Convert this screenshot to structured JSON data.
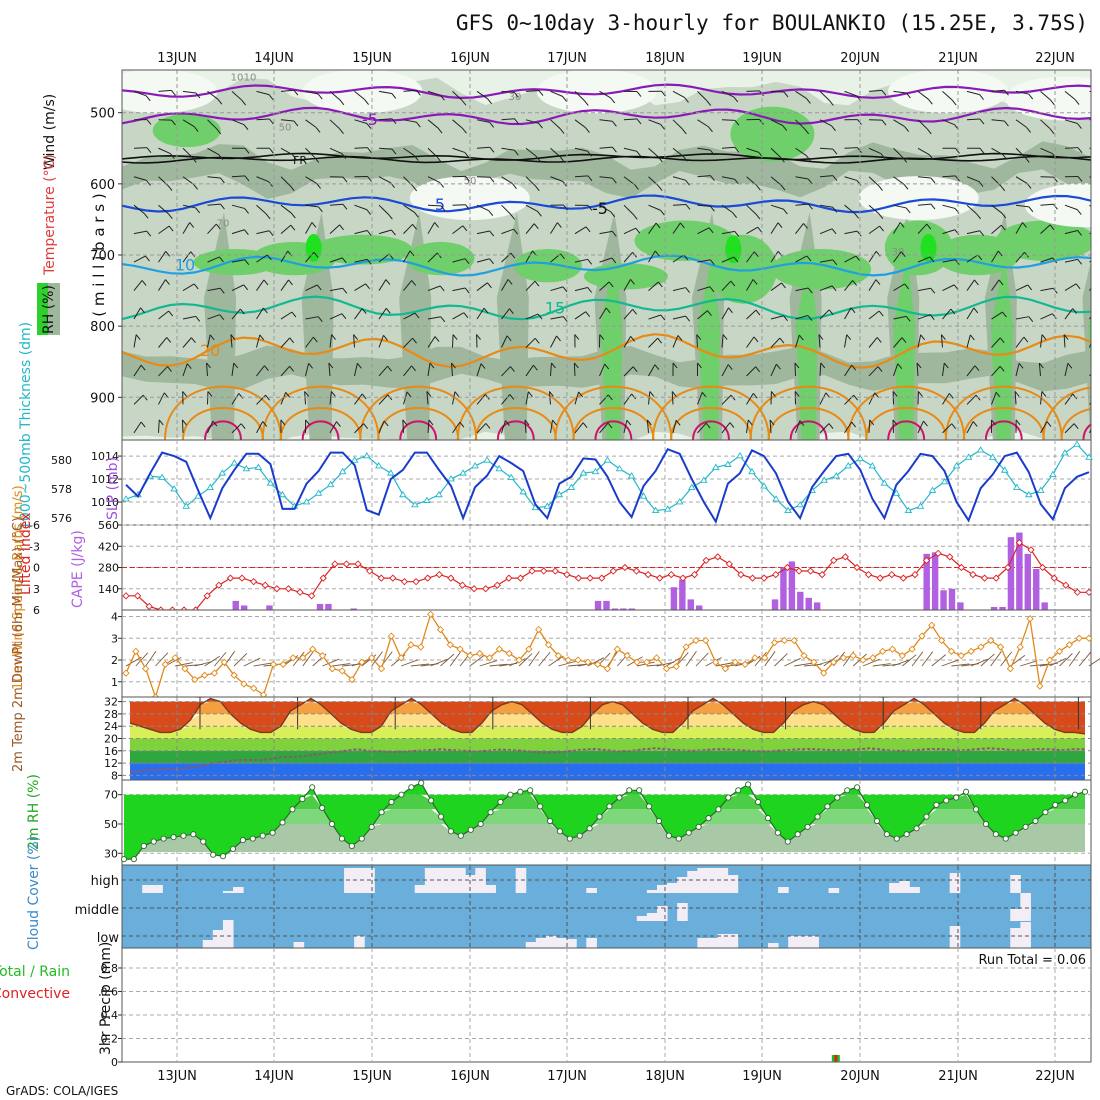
{
  "title": "GFS 0~10day 3-hourly for BOULANKIO (15.25E, 3.75S)",
  "credit": "GrADS: COLA/IGES",
  "dates": [
    "13JUN",
    "14JUN",
    "15JUN",
    "16JUN",
    "17JUN",
    "18JUN",
    "19JUN",
    "20JUN",
    "21JUN",
    "22JUN"
  ],
  "colors": {
    "rh_light": "#e8f2e6",
    "rh_mid": "#c8d6c6",
    "rh_dark": "#9fb79d",
    "rh_green": "#6fcf6a",
    "rh_bright": "#20e020",
    "temp_purple": "#8a1ab8",
    "temp_black": "#111111",
    "temp_blue": "#1a4ad8",
    "temp_lightblue": "#1fa0e0",
    "temp_teal": "#14b890",
    "temp_orange": "#e88a14",
    "temp_magenta": "#d0106a",
    "slp": "#1a3ccc",
    "thickness": "#22b8c8",
    "li": "#dd2222",
    "cape": "#b060e0",
    "wind": "#e08a1a",
    "rh2m": "#22bb22",
    "cloud": "#6aaedb",
    "cloud_bar": "#f3eef6"
  },
  "chart_data": [
    {
      "type": "heatmap",
      "name": "upper-air cross section",
      "ylabel": "( m i l l i b a r s )",
      "yticks": [
        500,
        600,
        700,
        800,
        900
      ],
      "ylim": [
        440,
        960
      ],
      "legend_labels": {
        "wind": "Wind (m/s)",
        "temperature": "Temperature (°C)",
        "rh": "RH (%)"
      },
      "isotherms": [
        {
          "label": "-5",
          "level": 510
        },
        {
          "label": "FR",
          "level": 565
        },
        {
          "label": "-5",
          "level": 635
        },
        {
          "label": "5",
          "level": 630
        },
        {
          "label": "10",
          "level": 715
        },
        {
          "label": "15",
          "level": 775
        },
        {
          "label": "20",
          "level": 835
        }
      ],
      "rh_contour_labels": [
        "10",
        "30",
        "50",
        "50",
        "70",
        "30",
        "10"
      ]
    },
    {
      "type": "line",
      "name": "SLP and thickness",
      "labels": {
        "slp": "SLP (mb)",
        "thickness": "1000~500mb Thickness (dm)"
      },
      "slp_yticks": [
        1010,
        1012,
        1014
      ],
      "slp_ylim": [
        1008,
        1015.4
      ],
      "thickness_yticks": [
        576,
        578,
        580
      ],
      "thickness_ylim": [
        575.5,
        581.4
      ],
      "slp": [
        1011.5,
        1010.5,
        1012.5,
        1014.3,
        1014,
        1013.5,
        1011,
        1008.6,
        1011.2,
        1012.8,
        1014.2,
        1014.2,
        1013.3,
        1009.4,
        1009.4,
        1011.6,
        1012.7,
        1014.3,
        1014.3,
        1013.2,
        1009.3,
        1008.9,
        1012,
        1012.8,
        1014.3,
        1014.3,
        1012.8,
        1011.4,
        1008.6,
        1011.3,
        1012.3,
        1014,
        1013.4,
        1012.7,
        1009.8,
        1008.6,
        1011.6,
        1012.2,
        1013.8,
        1013.7,
        1012.2,
        1010,
        1008.7,
        1011.4,
        1012.7,
        1014.6,
        1014.2,
        1012,
        1010,
        1008.3,
        1011.6,
        1012.5,
        1014.5,
        1014,
        1012.5,
        1010,
        1008.6,
        1011.3,
        1012.7,
        1014,
        1014.2,
        1012.8,
        1010.3,
        1008.6,
        1011.5,
        1012.7,
        1014.2,
        1014,
        1012.7,
        1010,
        1008.4,
        1011.2,
        1012.4,
        1014,
        1014.3,
        1012.6,
        1009.8,
        1008.5,
        1011.2,
        1012.2,
        1012.6
      ],
      "thickness": [
        577.3,
        577.6,
        578.9,
        578.8,
        578,
        576.8,
        577.5,
        578.1,
        579.1,
        579.8,
        579.4,
        579.5,
        578.4,
        577.6,
        576.8,
        577.1,
        577.7,
        578.3,
        579.2,
        580,
        580.3,
        579.6,
        579.1,
        577.6,
        576.9,
        577.2,
        577.6,
        578.7,
        579.1,
        579.6,
        580,
        579.4,
        578.8,
        577.8,
        576.7,
        576.8,
        577.6,
        578.1,
        579.1,
        579.2,
        580,
        579.4,
        578.9,
        577.5,
        576.5,
        576.6,
        577.1,
        578.1,
        578.6,
        579.5,
        579.7,
        580.3,
        579.2,
        578.2,
        577.3,
        576.5,
        576.9,
        577.9,
        578.6,
        578.9,
        579.6,
        580.1,
        579.6,
        578.4,
        577.7,
        576.5,
        576.8,
        577.9,
        578.5,
        579.6,
        580.2,
        580.7,
        580.2,
        579.3,
        578.1,
        577.6,
        577.9,
        579,
        580.5,
        581.1,
        580.2
      ]
    },
    {
      "type": "line",
      "name": "lifted index and CAPE",
      "labels": {
        "li": "Lifted Index",
        "cape": "CAPE (J/kg)"
      },
      "li_yticks": [
        -6,
        -3,
        0,
        3,
        6
      ],
      "li_ylim": [
        -6,
        6
      ],
      "cape_yticks": [
        140,
        280,
        420,
        560
      ],
      "cape_ylim": [
        0,
        560
      ],
      "li": [
        4,
        4,
        5.5,
        6,
        6,
        6,
        6,
        4,
        2.5,
        1.5,
        1.5,
        2,
        2.5,
        3,
        3,
        3.5,
        4,
        1.5,
        -0.5,
        -0.5,
        -0.5,
        0.5,
        1.5,
        1.5,
        2,
        2,
        1.5,
        1,
        1.5,
        2.5,
        3,
        3,
        2.5,
        1.5,
        1.5,
        0.5,
        0.5,
        0.5,
        1,
        1.5,
        1.5,
        1.5,
        0.5,
        0,
        0.5,
        1,
        1.5,
        1,
        1.5,
        1,
        -1,
        -1.5,
        -0.5,
        1,
        1.5,
        1.5,
        1,
        0,
        0.5,
        0.5,
        1,
        -1,
        -1.5,
        0,
        1,
        1.5,
        1,
        1.5,
        1,
        -1,
        -2,
        -1.5,
        0,
        1,
        1.5,
        1.5,
        0,
        -3.5,
        -2.5,
        0,
        1.5,
        2.5,
        3.5,
        3.5
      ],
      "cape_bars": [
        0,
        0,
        0,
        0,
        0,
        0,
        0,
        0,
        0,
        0,
        0,
        0,
        0,
        60,
        30,
        0,
        0,
        30,
        0,
        0,
        0,
        0,
        0,
        40,
        40,
        0,
        0,
        10,
        0,
        0,
        0,
        0,
        0,
        0,
        0,
        0,
        0,
        0,
        0,
        0,
        0,
        0,
        0,
        0,
        0,
        0,
        0,
        0,
        0,
        0,
        0,
        0,
        0,
        0,
        0,
        0,
        60,
        60,
        10,
        10,
        10,
        0,
        0,
        0,
        0,
        150,
        200,
        70,
        30,
        0,
        0,
        0,
        0,
        0,
        0,
        0,
        0,
        70,
        280,
        320,
        120,
        80,
        50,
        0,
        0,
        0,
        0,
        0,
        0,
        0,
        0,
        0,
        0,
        0,
        0,
        370,
        380,
        130,
        140,
        50,
        0,
        0,
        0,
        20,
        20,
        480,
        510,
        370,
        270,
        50,
        0,
        0,
        0,
        0,
        0
      ]
    },
    {
      "type": "line",
      "name": "10m wind",
      "ylabel": "10m Wind Speed & Barbs (m/s)",
      "yticks": [
        1,
        2,
        3,
        4
      ],
      "ylim": [
        0.3,
        4.3
      ],
      "values": [
        1.4,
        2.4,
        1.6,
        0.3,
        1.8,
        2.1,
        1.6,
        1.1,
        1.3,
        1.4,
        1.9,
        1.3,
        0.9,
        0.7,
        0.4,
        1.8,
        1.8,
        2.1,
        2.1,
        2.5,
        2.2,
        1.6,
        1.5,
        1.1,
        1.9,
        2.1,
        1.6,
        3.1,
        2.1,
        2.7,
        2.6,
        4.1,
        3.4,
        2.7,
        2.5,
        2.2,
        2.3,
        2.1,
        2.5,
        2.3,
        2.0,
        2.5,
        3.4,
        2.7,
        2.2,
        2.0,
        2.0,
        1.9,
        1.8,
        1.6,
        2.5,
        2.2,
        1.9,
        1.9,
        2.1,
        1.6,
        1.7,
        2.6,
        2.9,
        2.9,
        1.9,
        1.6,
        1.9,
        1.8,
        2.1,
        2.1,
        2.8,
        2.9,
        2.9,
        2.2,
        1.9,
        1.4,
        1.9,
        2.1,
        2.2,
        2.0,
        2.1,
        2.4,
        2.5,
        2.2,
        2.5,
        3.1,
        3.6,
        2.9,
        2.4,
        2.2,
        2.4,
        2.6,
        2.9,
        2.6,
        1.6,
        2.6,
        3.9,
        0.8,
        2.0,
        2.4,
        2.7,
        3.0,
        3.0
      ]
    },
    {
      "type": "area",
      "name": "2m temperature and dewpoint",
      "ylabel": "2m Temp 2m DewPt (6hr Min/Max) (°C)",
      "yticks": [
        8,
        12,
        16,
        20,
        24,
        28,
        32
      ],
      "ylim": [
        6.5,
        33.5
      ],
      "temp": [
        25,
        24,
        23,
        22,
        22,
        23,
        26,
        31,
        33,
        32,
        28,
        25,
        23,
        22,
        22,
        24,
        29,
        31,
        33,
        31,
        28,
        25,
        23,
        22,
        22,
        24,
        29,
        31,
        33,
        31,
        28,
        25,
        23,
        22,
        22,
        25,
        29,
        31,
        32,
        31,
        28,
        25,
        23,
        22,
        22,
        24,
        28,
        31,
        32,
        31,
        28,
        25,
        23,
        22,
        22,
        25,
        29,
        31,
        33,
        31,
        28,
        25,
        23,
        22,
        22,
        25,
        29,
        31,
        32,
        31,
        28,
        25,
        23,
        22,
        22,
        25,
        29,
        31,
        33,
        31,
        28,
        25,
        23,
        22,
        22,
        25,
        29,
        31,
        33,
        31,
        28,
        25,
        23,
        22,
        22,
        21.5
      ],
      "dewpoint": [
        9,
        9.5,
        10,
        10,
        10,
        10.5,
        11,
        12,
        12.5,
        13,
        13,
        13,
        13.5,
        14,
        14,
        14.5,
        15,
        15.5,
        16,
        16.5,
        16,
        15.8,
        15.6,
        15.8,
        16,
        16.2,
        16.5,
        16.2,
        16,
        15.8,
        16,
        16.4,
        16.2,
        16,
        15.6,
        15.4,
        15.6,
        16,
        16.4,
        16.6,
        16.2,
        15.8,
        16,
        16.5,
        16.8,
        16.5,
        16.2,
        16,
        16.2,
        16.5,
        16.5,
        16.2,
        16,
        15.8,
        16,
        16.2,
        16.5,
        16.6,
        16.4,
        16.2,
        16.2,
        16.5,
        16.8,
        16.4,
        16,
        16,
        16.3,
        16.6,
        16.5,
        16.2,
        16.2,
        16.6,
        16.8,
        16.6,
        16.2,
        16.2,
        16.6,
        16.5,
        16.2,
        16.5,
        16.5
      ]
    },
    {
      "type": "area",
      "name": "2m relative humidity",
      "ylabel": "2m RH (%)",
      "yticks": [
        30,
        50,
        70
      ],
      "ylim": [
        22,
        80
      ],
      "values": [
        26,
        26,
        35,
        38,
        40,
        41,
        42,
        43,
        38,
        29,
        28,
        33,
        39,
        40,
        42,
        44,
        51,
        60,
        67,
        75,
        61,
        50,
        40,
        35,
        40,
        48,
        58,
        65,
        70,
        75,
        78,
        66,
        55,
        45,
        42,
        46,
        50,
        58,
        65,
        70,
        72,
        73,
        62,
        52,
        45,
        40,
        42,
        47,
        55,
        62,
        68,
        73,
        73,
        62,
        52,
        42,
        40,
        44,
        48,
        54,
        60,
        68,
        73,
        77,
        65,
        54,
        44,
        38,
        43,
        48,
        55,
        62,
        68,
        73,
        75,
        63,
        52,
        43,
        40,
        43,
        47,
        55,
        63,
        66,
        68,
        72,
        60,
        50,
        43,
        40,
        44,
        48,
        52,
        58,
        63,
        66,
        70,
        72
      ]
    },
    {
      "type": "bar",
      "name": "cloud cover",
      "ylabel": "Cloud Cover (%)",
      "layers": [
        "high",
        "middle",
        "low"
      ]
    },
    {
      "type": "bar",
      "name": "3hr precipitation",
      "ylabel": "3hr Precip (mm)",
      "legend": {
        "total": "Total / Rain",
        "convective": "Convective"
      },
      "yticks": [
        0,
        0.2,
        0.4,
        0.6,
        0.8
      ],
      "ylim": [
        0,
        0.97
      ],
      "run_total": "Run Total = 0.06",
      "values": [
        {
          "date_index": 6.75,
          "total": 0.06,
          "convective": 0.06
        }
      ]
    }
  ]
}
